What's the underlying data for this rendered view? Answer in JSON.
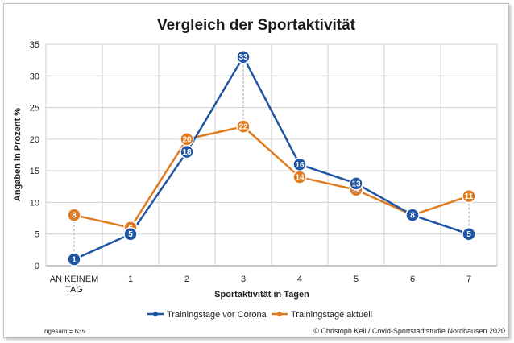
{
  "chart_data": {
    "type": "line",
    "title": "Vergleich der Sportaktivität",
    "xlabel": "Sportaktivität in Tagen",
    "ylabel": "Angaben in Prozent %",
    "categories": [
      [
        "AN KEINEM",
        "TAG"
      ],
      [
        "1"
      ],
      [
        "2"
      ],
      [
        "3"
      ],
      [
        "4"
      ],
      [
        "5"
      ],
      [
        "6"
      ],
      [
        "7"
      ]
    ],
    "ylim": [
      0,
      35
    ],
    "yticks": [
      0,
      5,
      10,
      15,
      20,
      25,
      30,
      35
    ],
    "grid": true,
    "legend_position": "bottom",
    "series": [
      {
        "name": "Trainingstage vor Corona",
        "color": "#1f55a5",
        "values": [
          1,
          5,
          18,
          33,
          16,
          13,
          8,
          5
        ]
      },
      {
        "name": "Trainingstage aktuell",
        "color": "#e07b1f",
        "values": [
          8,
          6,
          20,
          22,
          14,
          12,
          8,
          11
        ]
      }
    ]
  },
  "footnote": "ngesamt= 635",
  "credit": "© Christoph Keil / Covid-Sportstadtstudie Nordhausen 2020"
}
